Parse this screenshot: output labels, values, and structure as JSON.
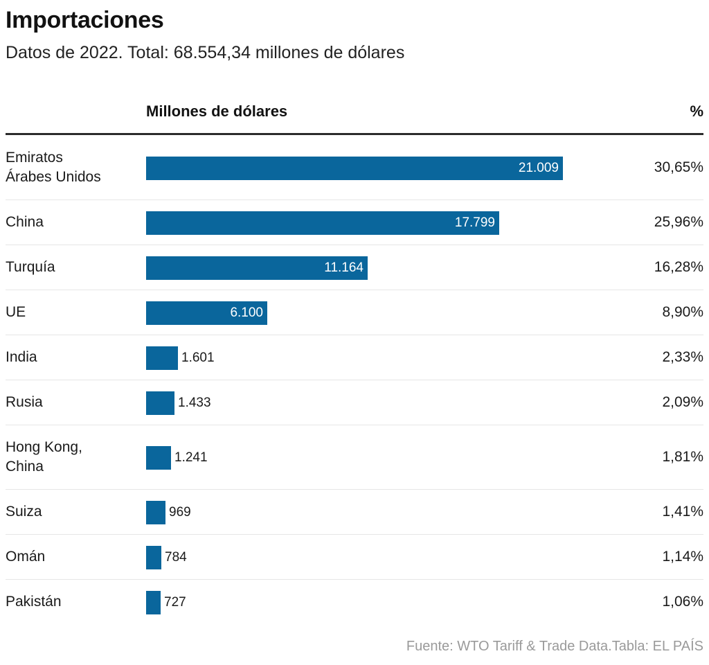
{
  "title": "Importaciones",
  "subtitle": "Datos de 2022. Total: 68.554,34 millones de dólares",
  "column_headers": {
    "value": "Millones de dólares",
    "percent": "%"
  },
  "source": "Fuente: WTO Tariff & Trade Data.Tabla: EL PAÍS",
  "colors": {
    "bar": "#0a669c",
    "text": "#121212",
    "source": "#9a9a9a"
  },
  "chart_data": {
    "type": "bar",
    "orientation": "horizontal",
    "title": "Importaciones",
    "subtitle": "Datos de 2022. Total: 68.554,34 millones de dólares",
    "categories": [
      "Emiratos Árabes Unidos",
      "China",
      "Turquía",
      "UE",
      "India",
      "Rusia",
      "Hong Kong, China",
      "Suiza",
      "Omán",
      "Pakistán"
    ],
    "category_lines": [
      [
        "Emiratos",
        "Árabes Unidos"
      ],
      [
        "China"
      ],
      [
        "Turquía"
      ],
      [
        "UE"
      ],
      [
        "India"
      ],
      [
        "Rusia"
      ],
      [
        "Hong Kong,",
        "China"
      ],
      [
        "Suiza"
      ],
      [
        "Omán"
      ],
      [
        "Pakistán"
      ]
    ],
    "values": [
      21009,
      17799,
      11164,
      6100,
      1601,
      1433,
      1241,
      969,
      784,
      727
    ],
    "value_labels": [
      "21.009",
      "17.799",
      "11.164",
      "6.100",
      "1.601",
      "1.433",
      "1.241",
      "969",
      "784",
      "727"
    ],
    "percent_labels": [
      "30,65%",
      "25,96%",
      "16,28%",
      "8,90%",
      "2,33%",
      "2,09%",
      "1,81%",
      "1,41%",
      "1,14%",
      "1,06%"
    ],
    "xlabel": "Millones de dólares",
    "ylabel": "",
    "xlim": [
      0,
      21009
    ],
    "grid": false,
    "legend": "none"
  }
}
